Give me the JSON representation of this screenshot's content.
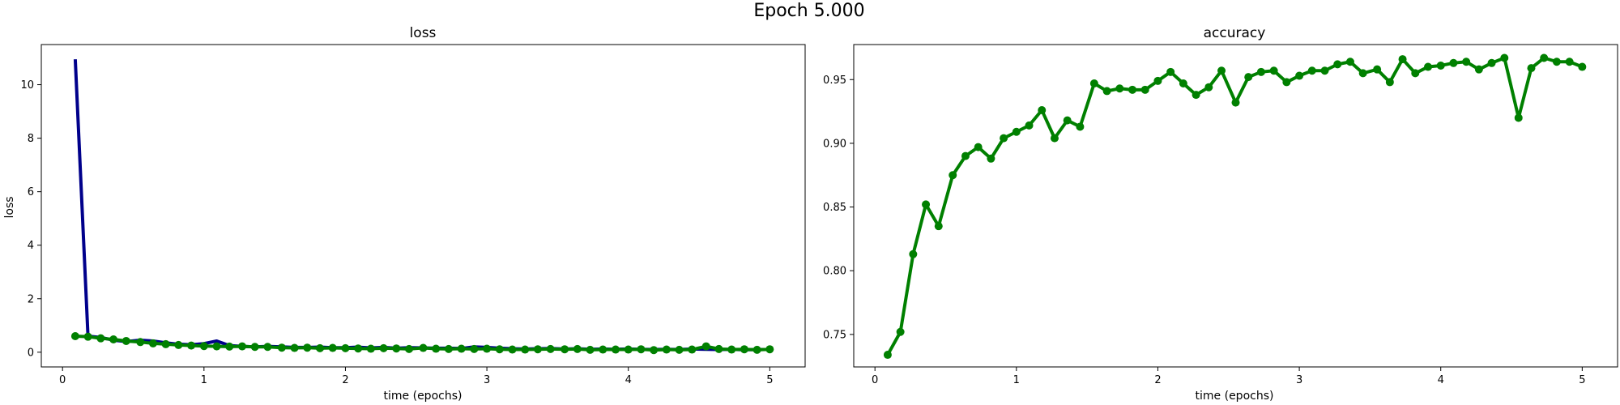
{
  "figure": {
    "suptitle": "Epoch 5.000"
  },
  "colors": {
    "train": "#00008b",
    "val": "#008000"
  },
  "chart_data": [
    {
      "type": "line",
      "title": "loss",
      "xlabel": "time (epochs)",
      "ylabel": "loss",
      "xlim": [
        -0.15,
        5.25
      ],
      "ylim": [
        -0.55,
        11.5
      ],
      "xticks": [
        0,
        1,
        2,
        3,
        4,
        5
      ],
      "yticks": [
        0,
        2,
        4,
        6,
        8,
        10
      ],
      "grid": false,
      "series": [
        {
          "color": "#00008b",
          "markers": false,
          "x": [
            0.09,
            0.18,
            0.27,
            0.36,
            0.45,
            0.55,
            0.64,
            0.73,
            0.82,
            0.91,
            1.0,
            1.09,
            1.18,
            1.27,
            1.36,
            1.45,
            1.55,
            1.64,
            1.73,
            1.82,
            1.91,
            2.0,
            2.09,
            2.18,
            2.27,
            2.36,
            2.45,
            2.55,
            2.64,
            2.73,
            2.82,
            2.91,
            3.0,
            3.09,
            3.18,
            3.27,
            3.36,
            3.45,
            3.55,
            3.64,
            3.73,
            3.82,
            3.91,
            4.0,
            4.09,
            4.18,
            4.27,
            4.36,
            4.45,
            4.55,
            4.64,
            4.73,
            4.82,
            4.91,
            5.0
          ],
          "y": [
            10.95,
            0.6,
            0.55,
            0.45,
            0.4,
            0.45,
            0.42,
            0.35,
            0.3,
            0.28,
            0.32,
            0.42,
            0.25,
            0.22,
            0.2,
            0.22,
            0.2,
            0.18,
            0.18,
            0.19,
            0.17,
            0.17,
            0.19,
            0.16,
            0.18,
            0.15,
            0.17,
            0.16,
            0.15,
            0.15,
            0.14,
            0.2,
            0.18,
            0.15,
            0.13,
            0.12,
            0.13,
            0.14,
            0.12,
            0.13,
            0.11,
            0.12,
            0.11,
            0.12,
            0.11,
            0.1,
            0.11,
            0.1,
            0.12,
            0.11,
            0.1,
            0.11,
            0.09,
            0.1,
            0.1
          ]
        },
        {
          "color": "#008000",
          "markers": true,
          "x": [
            0.09,
            0.18,
            0.27,
            0.36,
            0.45,
            0.55,
            0.64,
            0.73,
            0.82,
            0.91,
            1.0,
            1.09,
            1.18,
            1.27,
            1.36,
            1.45,
            1.55,
            1.64,
            1.73,
            1.82,
            1.91,
            2.0,
            2.09,
            2.18,
            2.27,
            2.36,
            2.45,
            2.55,
            2.64,
            2.73,
            2.82,
            2.91,
            3.0,
            3.09,
            3.18,
            3.27,
            3.36,
            3.45,
            3.55,
            3.64,
            3.73,
            3.82,
            3.91,
            4.0,
            4.09,
            4.18,
            4.27,
            4.36,
            4.45,
            4.55,
            4.64,
            4.73,
            4.82,
            4.91,
            5.0
          ],
          "y": [
            0.6,
            0.58,
            0.52,
            0.48,
            0.42,
            0.38,
            0.33,
            0.3,
            0.27,
            0.25,
            0.23,
            0.22,
            0.21,
            0.22,
            0.2,
            0.2,
            0.17,
            0.16,
            0.17,
            0.15,
            0.16,
            0.15,
            0.14,
            0.13,
            0.15,
            0.14,
            0.12,
            0.16,
            0.13,
            0.12,
            0.13,
            0.12,
            0.13,
            0.11,
            0.1,
            0.1,
            0.11,
            0.12,
            0.11,
            0.12,
            0.09,
            0.1,
            0.1,
            0.1,
            0.11,
            0.08,
            0.1,
            0.09,
            0.1,
            0.22,
            0.12,
            0.1,
            0.11,
            0.09,
            0.11
          ]
        }
      ]
    },
    {
      "type": "line",
      "title": "accuracy",
      "xlabel": "time (epochs)",
      "ylabel": "",
      "xlim": [
        -0.15,
        5.25
      ],
      "ylim": [
        0.7245,
        0.9775
      ],
      "xticks": [
        0,
        1,
        2,
        3,
        4,
        5
      ],
      "yticks": [
        0.75,
        0.8,
        0.85,
        0.9,
        0.95
      ],
      "grid": false,
      "series": [
        {
          "color": "#008000",
          "markers": true,
          "x": [
            0.09,
            0.18,
            0.27,
            0.36,
            0.45,
            0.55,
            0.64,
            0.73,
            0.82,
            0.91,
            1.0,
            1.09,
            1.18,
            1.27,
            1.36,
            1.45,
            1.55,
            1.64,
            1.73,
            1.82,
            1.91,
            2.0,
            2.09,
            2.18,
            2.27,
            2.36,
            2.45,
            2.55,
            2.64,
            2.73,
            2.82,
            2.91,
            3.0,
            3.09,
            3.18,
            3.27,
            3.36,
            3.45,
            3.55,
            3.64,
            3.73,
            3.82,
            3.91,
            4.0,
            4.09,
            4.18,
            4.27,
            4.36,
            4.45,
            4.55,
            4.64,
            4.73,
            4.82,
            4.91,
            5.0
          ],
          "y": [
            0.734,
            0.752,
            0.813,
            0.852,
            0.835,
            0.875,
            0.89,
            0.897,
            0.888,
            0.904,
            0.909,
            0.914,
            0.926,
            0.904,
            0.918,
            0.913,
            0.947,
            0.941,
            0.943,
            0.942,
            0.942,
            0.949,
            0.956,
            0.947,
            0.938,
            0.944,
            0.957,
            0.932,
            0.952,
            0.956,
            0.957,
            0.948,
            0.953,
            0.957,
            0.957,
            0.962,
            0.964,
            0.955,
            0.958,
            0.948,
            0.966,
            0.955,
            0.96,
            0.961,
            0.963,
            0.964,
            0.958,
            0.963,
            0.967,
            0.92,
            0.959,
            0.967,
            0.964,
            0.964,
            0.96
          ]
        }
      ]
    }
  ]
}
